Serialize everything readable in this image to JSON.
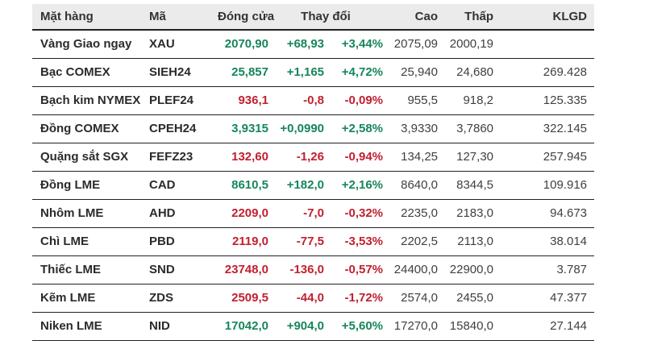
{
  "colors": {
    "up": "#16865b",
    "down": "#c1202f",
    "header_bg": "#ebebeb",
    "header_text": "#333333",
    "border": "#212121"
  },
  "chart_data": {
    "type": "table",
    "title": "",
    "legend": "none",
    "columns": {
      "commodity": "Mặt hàng",
      "code": "Mã",
      "close": "Đóng cửa",
      "change": "Thay đổi",
      "high": "Cao",
      "low": "Thấp",
      "volume": "KLGD"
    },
    "rows": [
      {
        "commodity": "Vàng Giao ngay",
        "code": "XAU",
        "close": "2070,90",
        "change": "+68,93",
        "change_pct": "+3,44%",
        "high": "2075,09",
        "low": "2000,19",
        "volume": "",
        "direction": "up"
      },
      {
        "commodity": "Bạc COMEX",
        "code": "SIEH24",
        "close": "25,857",
        "change": "+1,165",
        "change_pct": "+4,72%",
        "high": "25,940",
        "low": "24,680",
        "volume": "269.428",
        "direction": "up"
      },
      {
        "commodity": "Bạch kim NYMEX",
        "code": "PLEF24",
        "close": "936,1",
        "change": "-0,8",
        "change_pct": "-0,09%",
        "high": "955,5",
        "low": "918,2",
        "volume": "125.335",
        "direction": "down"
      },
      {
        "commodity": "Đồng COMEX",
        "code": "CPEH24",
        "close": "3,9315",
        "change": "+0,0990",
        "change_pct": "+2,58%",
        "high": "3,9330",
        "low": "3,7860",
        "volume": "322.145",
        "direction": "up"
      },
      {
        "commodity": "Quặng sắt SGX",
        "code": "FEFZ23",
        "close": "132,60",
        "change": "-1,26",
        "change_pct": "-0,94%",
        "high": "134,25",
        "low": "127,30",
        "volume": "257.945",
        "direction": "down"
      },
      {
        "commodity": "Đồng LME",
        "code": "CAD",
        "close": "8610,5",
        "change": "+182,0",
        "change_pct": "+2,16%",
        "high": "8640,0",
        "low": "8344,5",
        "volume": "109.916",
        "direction": "up"
      },
      {
        "commodity": "Nhôm LME",
        "code": "AHD",
        "close": "2209,0",
        "change": "-7,0",
        "change_pct": "-0,32%",
        "high": "2235,0",
        "low": "2183,0",
        "volume": "94.673",
        "direction": "down"
      },
      {
        "commodity": "Chì LME",
        "code": "PBD",
        "close": "2119,0",
        "change": "-77,5",
        "change_pct": "-3,53%",
        "high": "2202,5",
        "low": "2113,0",
        "volume": "38.014",
        "direction": "down"
      },
      {
        "commodity": "Thiếc LME",
        "code": "SND",
        "close": "23748,0",
        "change": "-136,0",
        "change_pct": "-0,57%",
        "high": "24400,0",
        "low": "22900,0",
        "volume": "3.787",
        "direction": "down"
      },
      {
        "commodity": "Kẽm LME",
        "code": "ZDS",
        "close": "2509,5",
        "change": "-44,0",
        "change_pct": "-1,72%",
        "high": "2574,0",
        "low": "2455,0",
        "volume": "47.377",
        "direction": "down"
      },
      {
        "commodity": "Niken LME",
        "code": "NID",
        "close": "17042,0",
        "change": "+904,0",
        "change_pct": "+5,60%",
        "high": "17270,0",
        "low": "15840,0",
        "volume": "27.144",
        "direction": "up"
      }
    ]
  }
}
